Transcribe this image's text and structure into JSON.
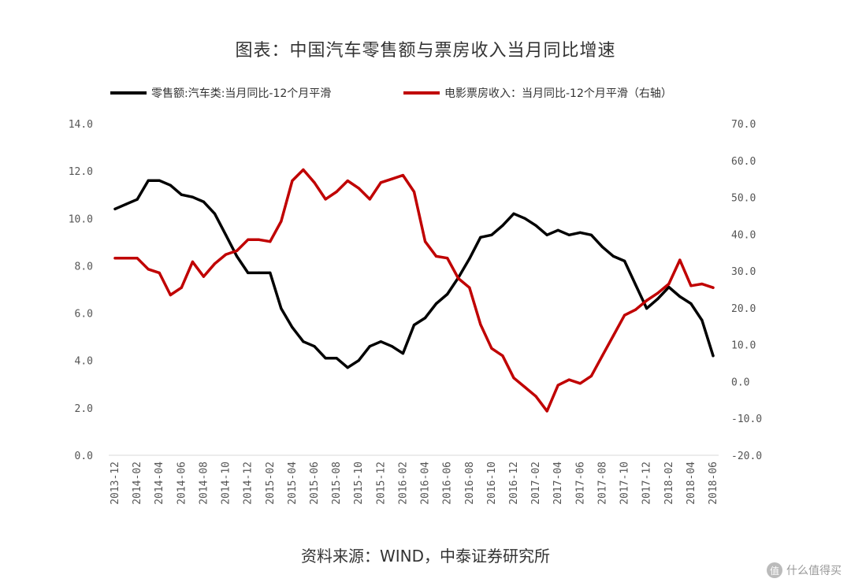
{
  "title": "图表：中国汽车零售额与票房收入当月同比增速",
  "source": "资料来源：WIND，中泰证券研究所",
  "watermark": {
    "logo": "值",
    "text": "什么值得买"
  },
  "chart_data": {
    "type": "line",
    "title": "图表：中国汽车零售额与票房收入当月同比增速",
    "legend_position": "top",
    "grid": false,
    "x_tick_labels": [
      "2013-12",
      "2014-02",
      "2014-04",
      "2014-06",
      "2014-08",
      "2014-10",
      "2014-12",
      "2015-02",
      "2015-04",
      "2015-06",
      "2015-08",
      "2015-10",
      "2015-12",
      "2016-02",
      "2016-04",
      "2016-06",
      "2016-08",
      "2016-10",
      "2016-12",
      "2017-02",
      "2017-04",
      "2017-06",
      "2017-08",
      "2017-10",
      "2017-12",
      "2018-02",
      "2018-04",
      "2018-06"
    ],
    "x": [
      "2013-12",
      "2014-01",
      "2014-02",
      "2014-03",
      "2014-04",
      "2014-05",
      "2014-06",
      "2014-07",
      "2014-08",
      "2014-09",
      "2014-10",
      "2014-11",
      "2014-12",
      "2015-01",
      "2015-02",
      "2015-03",
      "2015-04",
      "2015-05",
      "2015-06",
      "2015-07",
      "2015-08",
      "2015-09",
      "2015-10",
      "2015-11",
      "2015-12",
      "2016-01",
      "2016-02",
      "2016-03",
      "2016-04",
      "2016-05",
      "2016-06",
      "2016-07",
      "2016-08",
      "2016-09",
      "2016-10",
      "2016-11",
      "2016-12",
      "2017-01",
      "2017-02",
      "2017-03",
      "2017-04",
      "2017-05",
      "2017-06",
      "2017-07",
      "2017-08",
      "2017-09",
      "2017-10",
      "2017-11",
      "2017-12",
      "2018-01",
      "2018-02",
      "2018-03",
      "2018-04",
      "2018-05",
      "2018-06"
    ],
    "y_left": {
      "range": [
        0,
        14
      ],
      "ticks": [
        "14.0",
        "12.0",
        "10.0",
        "8.0",
        "6.0",
        "4.0",
        "2.0",
        "0.0"
      ]
    },
    "y_right": {
      "range": [
        -20,
        70
      ],
      "ticks": [
        "70.0",
        "60.0",
        "50.0",
        "40.0",
        "30.0",
        "20.0",
        "10.0",
        "0.0",
        "-10.0",
        "-20.0"
      ]
    },
    "series": [
      {
        "name": "零售额:汽车类:当月同比-12个月平滑",
        "axis": "left",
        "color": "#000000",
        "values": [
          10.4,
          10.6,
          10.8,
          11.6,
          11.6,
          11.4,
          11.0,
          10.9,
          10.7,
          10.2,
          9.3,
          8.4,
          7.7,
          7.7,
          7.7,
          6.2,
          5.4,
          4.8,
          4.6,
          4.1,
          4.1,
          3.7,
          4.0,
          4.6,
          4.8,
          4.6,
          4.3,
          5.5,
          5.8,
          6.4,
          6.8,
          7.5,
          8.3,
          9.2,
          9.3,
          9.7,
          10.2,
          10.0,
          9.7,
          9.3,
          9.5,
          9.3,
          9.4,
          9.3,
          8.8,
          8.4,
          8.2,
          7.2,
          6.2,
          6.6,
          7.1,
          6.7,
          6.4,
          5.7,
          4.2
        ]
      },
      {
        "name": "电影票房收入：当月同比-12个月平滑（右轴）",
        "axis": "right",
        "color": "#c00000",
        "values": [
          33.5,
          33.5,
          33.5,
          30.5,
          29.5,
          23.5,
          25.5,
          32.5,
          28.5,
          32.0,
          34.5,
          35.5,
          38.5,
          38.5,
          38.0,
          43.5,
          54.5,
          57.5,
          54.0,
          49.5,
          51.5,
          54.5,
          52.5,
          49.5,
          54.0,
          55.0,
          56.0,
          51.5,
          38.0,
          34.0,
          33.5,
          28.0,
          25.5,
          15.5,
          9.0,
          7.0,
          1.0,
          -1.5,
          -4.0,
          -8.0,
          -1.0,
          0.5,
          -0.5,
          1.5,
          7.0,
          12.5,
          18.0,
          19.5,
          22.0,
          24.0,
          26.5,
          33.0,
          26.0,
          26.5,
          25.5
        ]
      }
    ]
  }
}
